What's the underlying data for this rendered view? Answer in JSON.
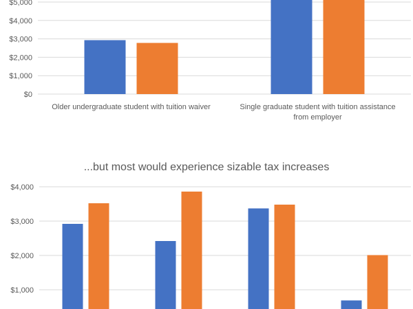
{
  "chart_data": [
    {
      "type": "bar",
      "title": "",
      "categories": [
        "Older undergraduate student with tuition waiver",
        "Single graduate student with tuition assistance from employer"
      ],
      "category_lines": [
        [
          "Older undergraduate student with tuition waiver"
        ],
        [
          "Single graduate student with tuition assistance",
          "from employer"
        ]
      ],
      "series": [
        {
          "color": "#4472c4",
          "values": [
            2930,
            5300
          ]
        },
        {
          "color": "#ed7d31",
          "values": [
            2780,
            5300
          ]
        }
      ],
      "yticks": [
        "$0",
        "$1,000",
        "$2,000",
        "$3,000",
        "$4,000",
        "$5,000"
      ],
      "ytick_values": [
        0,
        1000,
        2000,
        3000,
        4000,
        5000
      ],
      "ylim": [
        0,
        5000
      ],
      "grid": true,
      "note_cropped": "second-category bars extend above the visible top of the chart"
    },
    {
      "type": "bar",
      "title": "...but most would experience sizable tax increases",
      "categories": [
        "",
        "",
        "",
        ""
      ],
      "series": [
        {
          "color": "#4472c4",
          "values": [
            2920,
            2420,
            3370,
            690
          ]
        },
        {
          "color": "#ed7d31",
          "values": [
            3520,
            3860,
            3480,
            2010
          ]
        }
      ],
      "yticks": [
        "$1,000",
        "$2,000",
        "$3,000",
        "$4,000"
      ],
      "ytick_values": [
        1000,
        2000,
        3000,
        4000
      ],
      "ylim": [
        0,
        4000
      ],
      "grid": true
    }
  ]
}
